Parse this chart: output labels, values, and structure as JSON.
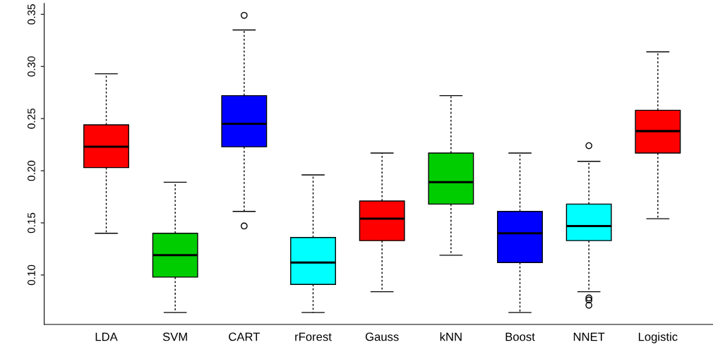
{
  "chart_data": {
    "type": "box",
    "categories": [
      "LDA",
      "SVM",
      "CART",
      "rForest",
      "Gauss",
      "kNN",
      "Boost",
      "NNET",
      "Logistic"
    ],
    "colors": [
      "#ff0000",
      "#00cd00",
      "#0000ff",
      "#00ffff",
      "#ff0000",
      "#00cd00",
      "#0000ff",
      "#00ffff",
      "#ff0000"
    ],
    "boxes": [
      {
        "low": 0.14,
        "q1": 0.203,
        "median": 0.223,
        "q3": 0.244,
        "high": 0.293
      },
      {
        "low": 0.064,
        "q1": 0.098,
        "median": 0.119,
        "q3": 0.14,
        "high": 0.189
      },
      {
        "low": 0.161,
        "q1": 0.223,
        "median": 0.245,
        "q3": 0.272,
        "high": 0.335,
        "outliers": [
          0.349,
          0.147
        ]
      },
      {
        "low": 0.064,
        "q1": 0.091,
        "median": 0.112,
        "q3": 0.136,
        "high": 0.196
      },
      {
        "low": 0.084,
        "q1": 0.133,
        "median": 0.154,
        "q3": 0.171,
        "high": 0.217
      },
      {
        "low": 0.119,
        "q1": 0.168,
        "median": 0.189,
        "q3": 0.217,
        "high": 0.272
      },
      {
        "low": 0.064,
        "q1": 0.112,
        "median": 0.14,
        "q3": 0.161,
        "high": 0.217
      },
      {
        "low": 0.084,
        "q1": 0.133,
        "median": 0.147,
        "q3": 0.168,
        "high": 0.209,
        "outliers": [
          0.224,
          0.078,
          0.076,
          0.071
        ]
      },
      {
        "low": 0.154,
        "q1": 0.217,
        "median": 0.238,
        "q3": 0.258,
        "high": 0.314
      }
    ],
    "ylim": [
      0.0526,
      0.3604
    ],
    "yticks": [
      {
        "value": 0.1,
        "label": "0.10"
      },
      {
        "value": 0.15,
        "label": "0.15"
      },
      {
        "value": 0.2,
        "label": "0.20"
      },
      {
        "value": 0.25,
        "label": "0.25"
      },
      {
        "value": 0.3,
        "label": "0.30"
      },
      {
        "value": 0.35,
        "label": "0.35"
      }
    ]
  }
}
